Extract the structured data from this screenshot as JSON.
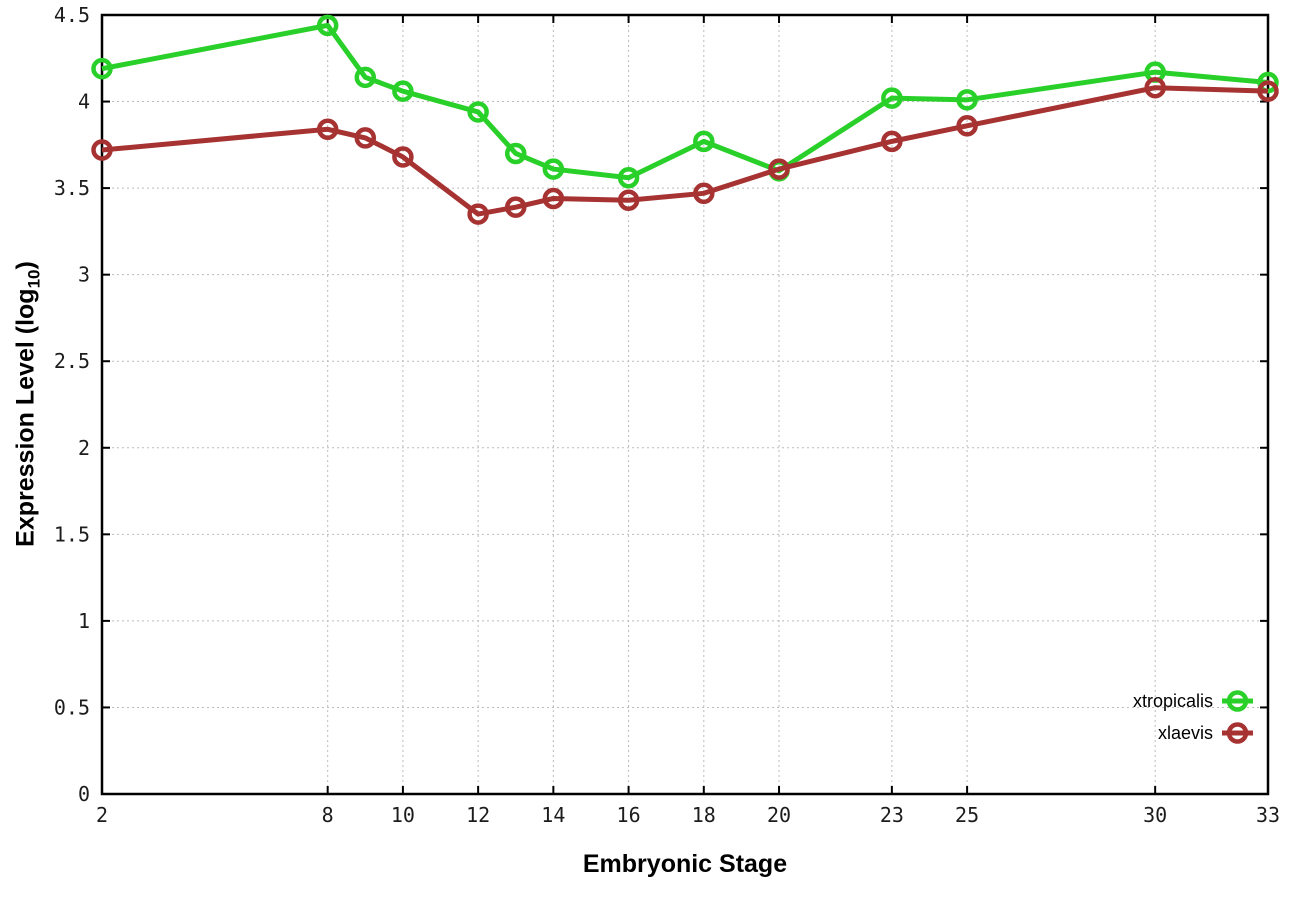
{
  "chart_data": {
    "type": "line",
    "title": "",
    "xlabel": "Embryonic Stage",
    "ylabel": "Expression Level (log10)",
    "ylabel_parts": {
      "main": "Expression Level (log",
      "sub": "10",
      "end": ")"
    },
    "x": [
      2,
      8,
      9,
      10,
      12,
      13,
      14,
      16,
      18,
      20,
      23,
      25,
      30,
      33
    ],
    "series": [
      {
        "name": "xtropicalis",
        "color": "#29d029",
        "values": [
          4.19,
          4.44,
          4.14,
          4.06,
          3.94,
          3.7,
          3.61,
          3.56,
          3.77,
          3.6,
          4.02,
          4.01,
          4.17,
          4.11
        ]
      },
      {
        "name": "xlaevis",
        "color": "#a63232",
        "values": [
          3.72,
          3.84,
          3.79,
          3.68,
          3.35,
          3.39,
          3.44,
          3.43,
          3.47,
          3.61,
          3.77,
          3.86,
          4.08,
          4.06
        ]
      }
    ],
    "xlim": [
      2,
      33
    ],
    "ylim": [
      0,
      4.5
    ],
    "x_ticks": [
      2,
      8,
      10,
      12,
      14,
      16,
      18,
      20,
      23,
      25,
      30,
      33
    ],
    "x_tick_labels": [
      "2",
      "8",
      "10",
      "12",
      "14",
      "16",
      "18",
      "20",
      "23",
      "25",
      "30",
      "33"
    ],
    "y_ticks": [
      0,
      0.5,
      1,
      1.5,
      2,
      2.5,
      3,
      3.5,
      4,
      4.5
    ],
    "y_tick_labels": [
      "0",
      "0.5",
      "1",
      "1.5",
      "2",
      "2.5",
      "3",
      "3.5",
      "4",
      "4.5"
    ],
    "grid": true,
    "legend_position": "inside-bottom-right",
    "legend_entries": [
      "xtropicalis",
      "xlaevis"
    ]
  },
  "style": {
    "background": "#ffffff",
    "border_color": "#000000",
    "grid_color": "#bcbcbc",
    "tick_label_color": "#1c1c1c",
    "legend_text_color": "#000000"
  }
}
